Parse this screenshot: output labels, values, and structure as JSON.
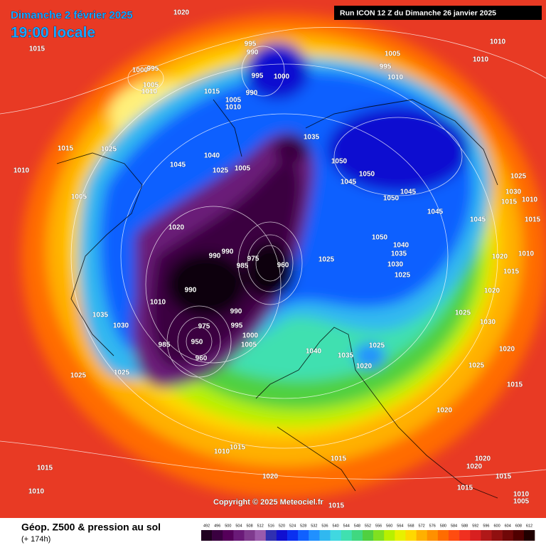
{
  "header": {
    "date": "Dimanche 2 février 2025",
    "time": "19:00 locale",
    "run": "Run ICON 12 Z du Dimanche 26 janvier 2025"
  },
  "footer": {
    "title": "Géop. Z500 & pression au sol",
    "lead": "(+ 174h)",
    "copyright": "Copyright © 2025 Meteociel.fr"
  },
  "colorbar": {
    "values": [
      492,
      496,
      500,
      504,
      508,
      512,
      516,
      520,
      524,
      528,
      532,
      536,
      540,
      544,
      548,
      552,
      556,
      560,
      564,
      568,
      572,
      576,
      580,
      584,
      588,
      592,
      596,
      600,
      604,
      608,
      612
    ],
    "colors": [
      "#200020",
      "#3a0040",
      "#55005a",
      "#6a1a78",
      "#7f3a8e",
      "#9a5aac",
      "#3030b0",
      "#1010d0",
      "#0a30f0",
      "#1060ff",
      "#2090ff",
      "#30b8f0",
      "#40d8e0",
      "#40e0b0",
      "#40d880",
      "#50d040",
      "#80e020",
      "#b8f000",
      "#e8f000",
      "#ffd800",
      "#ffb000",
      "#ff9000",
      "#ff6c00",
      "#ff4c10",
      "#f03020",
      "#d82020",
      "#b01818",
      "#901010",
      "#700808",
      "#500000",
      "#200000"
    ]
  },
  "pressure_labels": [
    1020,
    1015,
    995,
    990,
    1005,
    1000,
    1010,
    1010,
    995,
    1010,
    1000,
    995,
    1005,
    1010,
    995,
    990,
    1015,
    1005,
    1010,
    1035,
    1015,
    1025,
    1010,
    1040,
    1045,
    1025,
    1005,
    1050,
    1045,
    1050,
    1025,
    1005,
    1045,
    1050,
    1030,
    1015,
    1010,
    1020,
    1045,
    1045,
    1015,
    1050,
    1040,
    1035,
    1020,
    1010,
    990,
    990,
    975,
    985,
    960,
    1025,
    1030,
    1025,
    1015,
    990,
    1020,
    1010,
    990,
    1025,
    1035,
    1030,
    995,
    1030,
    975,
    1000,
    950,
    985,
    1005,
    1025,
    1040,
    1035,
    960,
    1020,
    1020,
    1025,
    1025,
    1025,
    1015,
    1020,
    1010,
    1015,
    1015,
    1020,
    1015,
    1020,
    1020,
    1015,
    1010,
    1015,
    1010,
    1005,
    1015
  ]
}
